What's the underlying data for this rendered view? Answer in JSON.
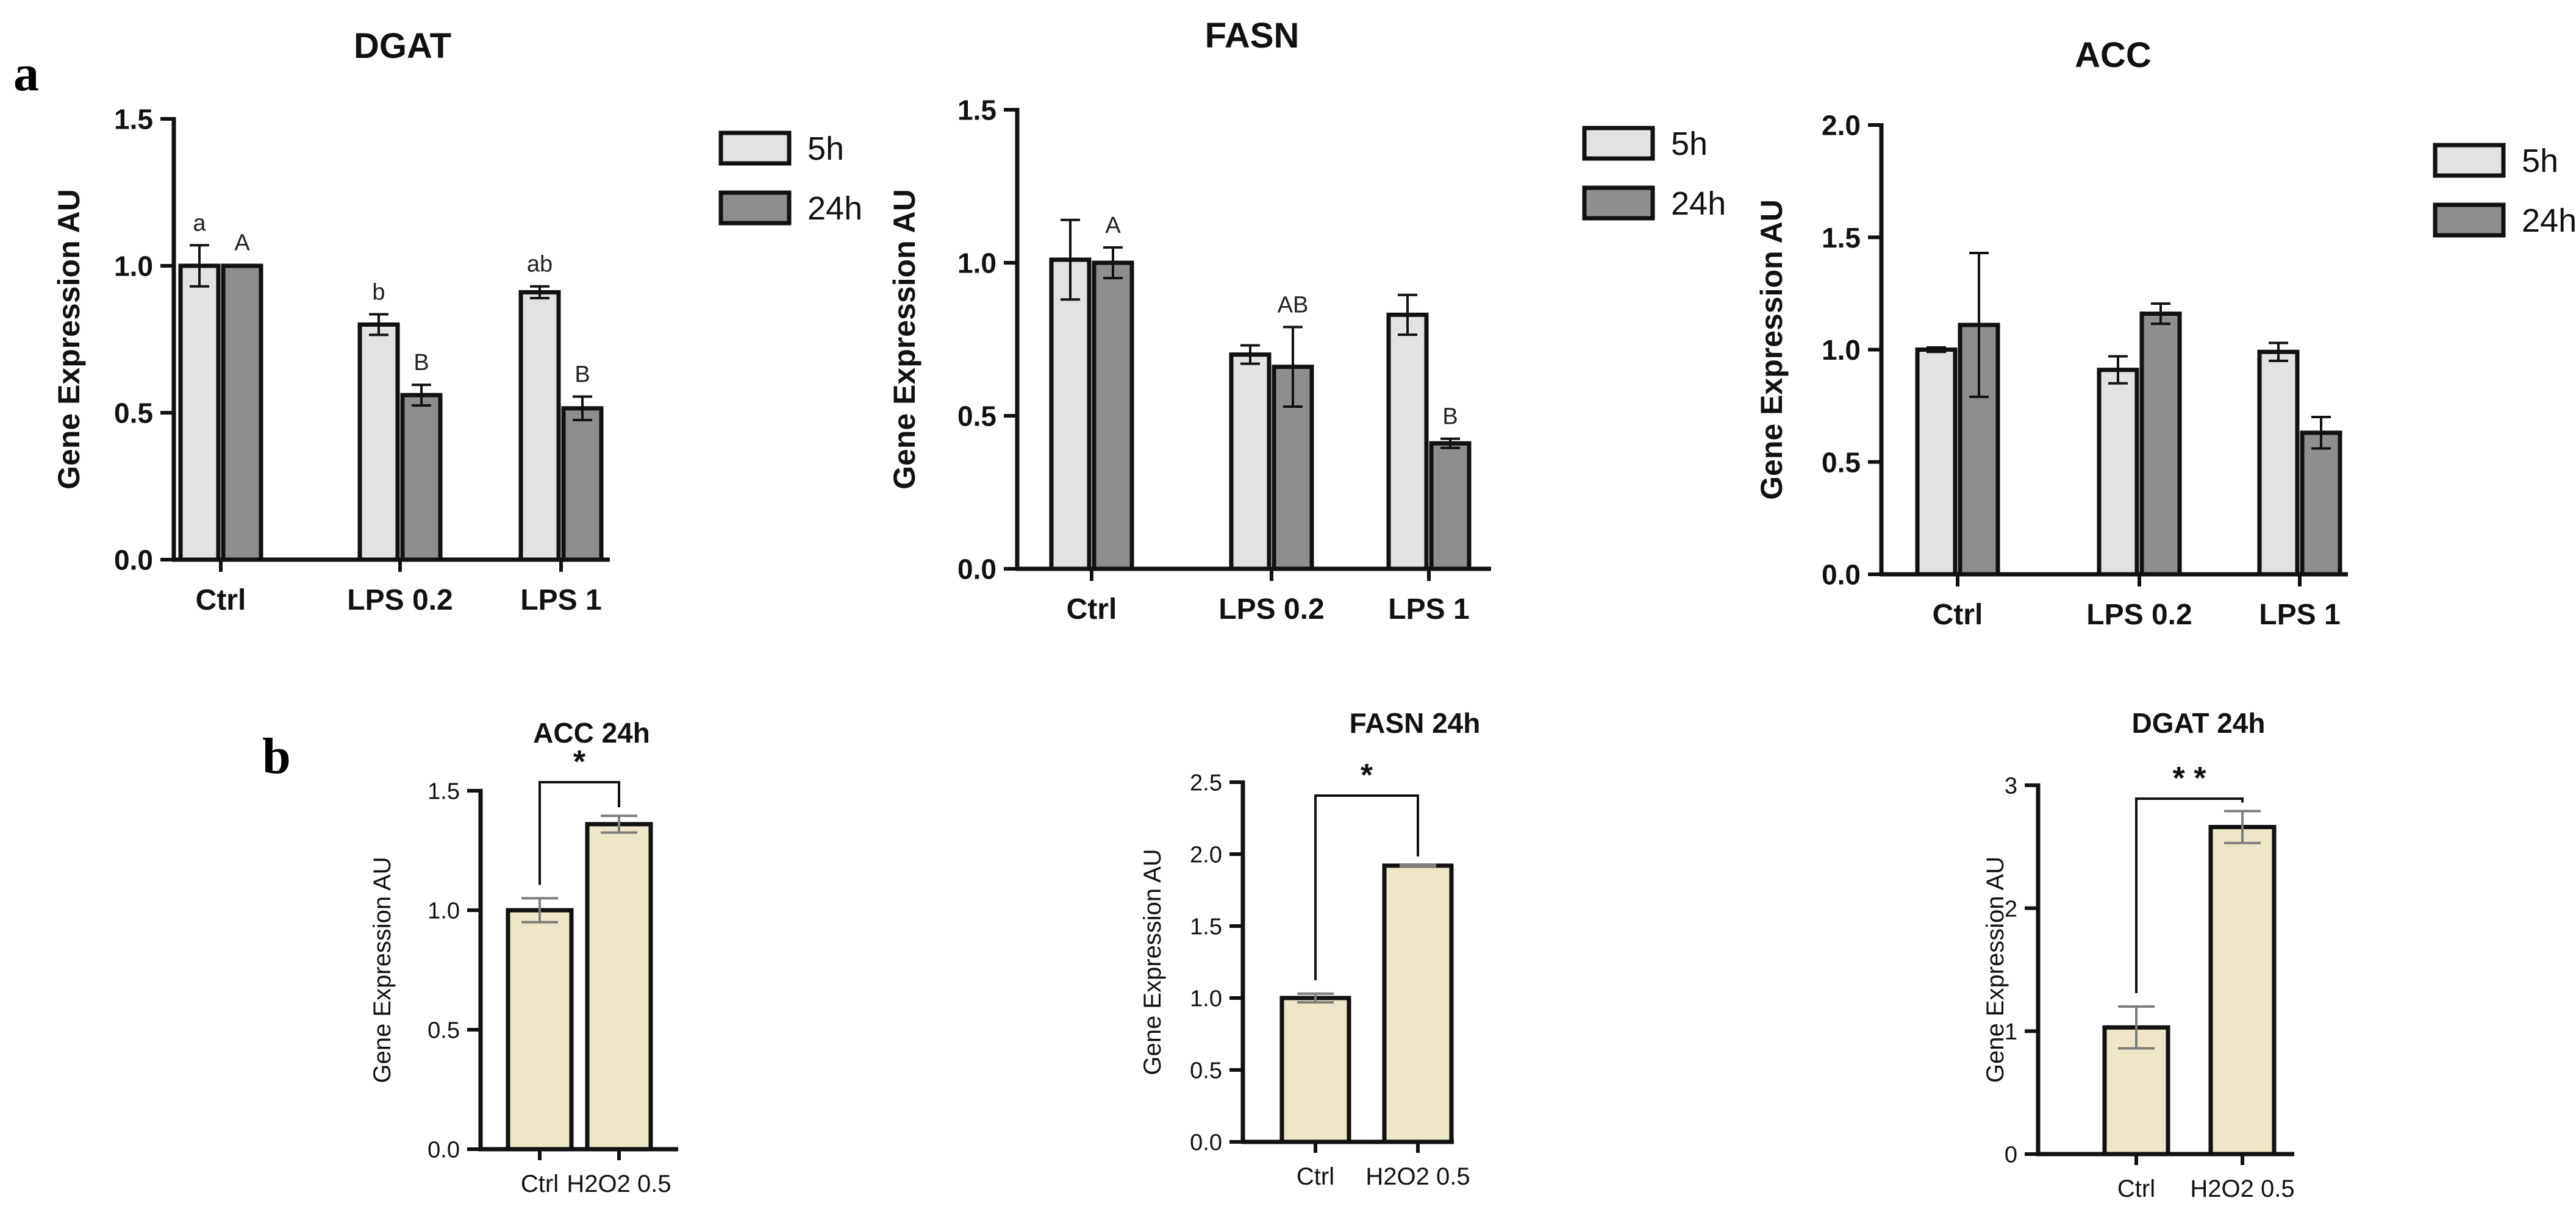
{
  "panels": {
    "a": "a",
    "b": "b"
  },
  "legend": {
    "labels": [
      "5h",
      "24h"
    ],
    "colors": [
      "#e2e2e2",
      "#8e8e8e"
    ]
  },
  "colors": {
    "bar_b": "#efe6c8",
    "stroke": "#111111",
    "err_b": "#7d7d7d"
  },
  "chart_data": [
    {
      "type": "bar",
      "title": "DGAT",
      "ylabel": "Gene Expression AU",
      "categories": [
        "Ctrl",
        "LPS 0.2",
        "LPS 1"
      ],
      "ylim": [
        0,
        1.5
      ],
      "yticks": [
        "0.0",
        "0.5",
        "1.0",
        "1.5"
      ],
      "legend_position": "top-right",
      "series": [
        {
          "name": "5h",
          "values": [
            1.0,
            0.8,
            0.91
          ],
          "errors": [
            0.07,
            0.035,
            0.02
          ],
          "labels": [
            "a",
            "b",
            "ab"
          ]
        },
        {
          "name": "24h",
          "values": [
            1.0,
            0.56,
            0.515
          ],
          "errors": [
            0.003,
            0.035,
            0.04
          ],
          "labels": [
            "A",
            "B",
            "B"
          ]
        }
      ]
    },
    {
      "type": "bar",
      "title": "FASN",
      "ylabel": "Gene Expression AU",
      "categories": [
        "Ctrl",
        "LPS 0.2",
        "LPS 1"
      ],
      "ylim": [
        0,
        1.5
      ],
      "yticks": [
        "0.0",
        "0.5",
        "1.0",
        "1.5"
      ],
      "legend_position": "top-right",
      "series": [
        {
          "name": "5h",
          "values": [
            1.01,
            0.7,
            0.83
          ],
          "errors": [
            0.13,
            0.03,
            0.065
          ],
          "labels": [
            "",
            "",
            ""
          ]
        },
        {
          "name": "24h",
          "values": [
            1.0,
            0.66,
            0.41
          ],
          "errors": [
            0.05,
            0.13,
            0.015
          ],
          "labels": [
            "A",
            "AB",
            "B"
          ]
        }
      ]
    },
    {
      "type": "bar",
      "title": "ACC",
      "ylabel": "Gene Expression AU",
      "categories": [
        "Ctrl",
        "LPS 0.2",
        "LPS 1"
      ],
      "ylim": [
        0,
        2.0
      ],
      "yticks": [
        "0.0",
        "0.5",
        "1.0",
        "1.5",
        "2.0"
      ],
      "legend_position": "top-right",
      "series": [
        {
          "name": "5h",
          "values": [
            1.0,
            0.91,
            0.99
          ],
          "errors": [
            0.01,
            0.06,
            0.04
          ],
          "labels": [
            "",
            "",
            ""
          ]
        },
        {
          "name": "24h",
          "values": [
            1.11,
            1.16,
            0.63
          ],
          "errors": [
            0.32,
            0.045,
            0.07
          ],
          "labels": [
            "",
            "",
            ""
          ]
        }
      ]
    },
    {
      "type": "bar",
      "title": "ACC 24h",
      "ylabel": "Gene Expression AU",
      "categories": [
        "Ctrl",
        "H2O2 0.5"
      ],
      "ylim": [
        0,
        1.5
      ],
      "yticks": [
        "0.0",
        "0.5",
        "1.0",
        "1.5"
      ],
      "values": [
        1.0,
        1.36
      ],
      "errors": [
        0.05,
        0.035
      ],
      "significance": "*"
    },
    {
      "type": "bar",
      "title": "FASN 24h",
      "ylabel": "Gene Expression AU",
      "categories": [
        "Ctrl",
        "H2O2 0.5"
      ],
      "ylim": [
        0,
        2.5
      ],
      "yticks": [
        "0.0",
        "0.5",
        "1.0",
        "1.5",
        "2.0",
        "2.5"
      ],
      "values": [
        1.0,
        1.92
      ],
      "errors": [
        0.03,
        0.005
      ],
      "significance": "*"
    },
    {
      "type": "bar",
      "title": "DGAT 24h",
      "ylabel": "Gene Expression AU",
      "categories": [
        "Ctrl",
        "H2O2 0.5"
      ],
      "ylim": [
        0,
        3
      ],
      "yticks": [
        "0",
        "1",
        "2",
        "3"
      ],
      "values": [
        1.03,
        2.66
      ],
      "errors": [
        0.17,
        0.13
      ],
      "significance": "* *"
    }
  ]
}
